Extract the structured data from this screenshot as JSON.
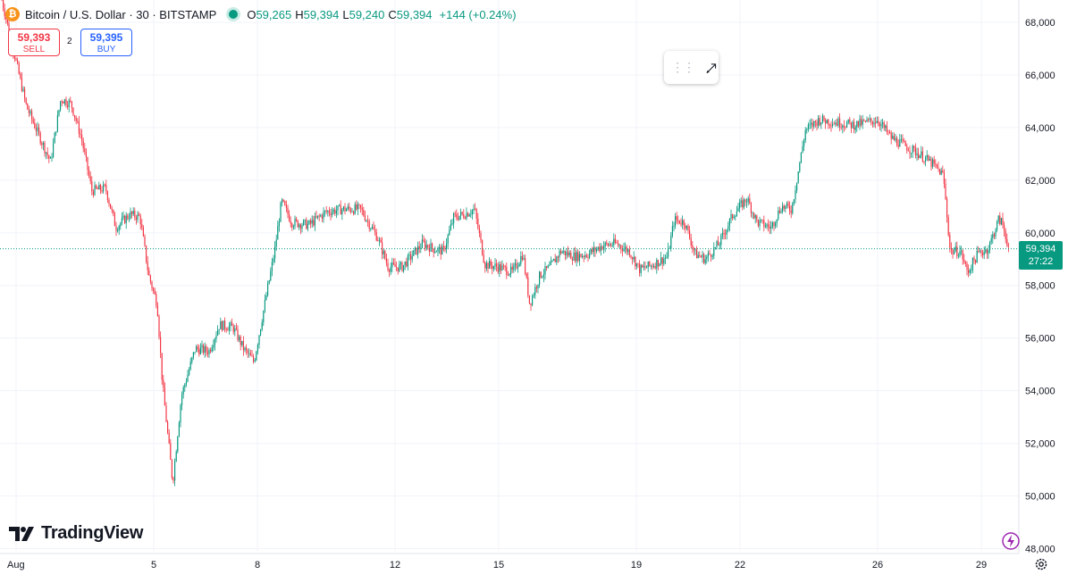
{
  "header": {
    "symbol_title": "Bitcoin / U.S. Dollar · 30 · BITSTAMP",
    "ohlc": {
      "o_label": "O",
      "o_value": "59,265",
      "h_label": "H",
      "h_value": "59,394",
      "l_label": "L",
      "l_value": "59,240",
      "c_label": "C",
      "c_value": "59,394",
      "change": "+144 (+0.24%)"
    }
  },
  "trade": {
    "sell_price": "59,393",
    "sell_label": "SELL",
    "spread": "2",
    "buy_price": "59,395",
    "buy_label": "BUY"
  },
  "price_tag": {
    "price": "59,394",
    "countdown": "27:22"
  },
  "branding": {
    "logo_text": "TradingView"
  },
  "icons": {
    "drawing_handle": "drag-handle-icon",
    "drawing_tool": "arrow-tool-icon",
    "assistant": "bolt-icon",
    "settings": "gear-icon"
  },
  "colors": {
    "up": "#089981",
    "down": "#f23645",
    "grid": "#f0f3fa"
  },
  "chart_data": {
    "type": "candlestick",
    "interval": "30",
    "y_ticks": [
      "48,000",
      "50,000",
      "52,000",
      "54,000",
      "56,000",
      "58,000",
      "60,000",
      "62,000",
      "64,000",
      "66,000",
      "68,000"
    ],
    "x_ticks": [
      "Aug",
      "5",
      "8",
      "12",
      "15",
      "19",
      "22",
      "26",
      "29"
    ],
    "ylim": [
      47800,
      68300
    ],
    "last_price": 59394,
    "price_path": [
      {
        "day": 1.0,
        "price": 66500
      },
      {
        "day": 1.3,
        "price": 64800
      },
      {
        "day": 1.7,
        "price": 63600
      },
      {
        "day": 2.0,
        "price": 62700
      },
      {
        "day": 2.3,
        "price": 65100
      },
      {
        "day": 2.6,
        "price": 64900
      },
      {
        "day": 2.9,
        "price": 63600
      },
      {
        "day": 3.2,
        "price": 61600
      },
      {
        "day": 3.6,
        "price": 61700
      },
      {
        "day": 3.9,
        "price": 60200
      },
      {
        "day": 4.3,
        "price": 60700
      },
      {
        "day": 4.6,
        "price": 60600
      },
      {
        "day": 4.85,
        "price": 58400
      },
      {
        "day": 5.1,
        "price": 57300
      },
      {
        "day": 5.25,
        "price": 54300
      },
      {
        "day": 5.4,
        "price": 52400
      },
      {
        "day": 5.55,
        "price": 50500
      },
      {
        "day": 5.8,
        "price": 53800
      },
      {
        "day": 6.2,
        "price": 55600
      },
      {
        "day": 6.6,
        "price": 55500
      },
      {
        "day": 6.9,
        "price": 56500
      },
      {
        "day": 7.3,
        "price": 56400
      },
      {
        "day": 7.6,
        "price": 55600
      },
      {
        "day": 7.9,
        "price": 55100
      },
      {
        "day": 8.2,
        "price": 57200
      },
      {
        "day": 8.5,
        "price": 59300
      },
      {
        "day": 8.7,
        "price": 61200
      },
      {
        "day": 9.0,
        "price": 60400
      },
      {
        "day": 9.5,
        "price": 60300
      },
      {
        "day": 10.0,
        "price": 60800
      },
      {
        "day": 10.5,
        "price": 60900
      },
      {
        "day": 11.0,
        "price": 60900
      },
      {
        "day": 11.5,
        "price": 59800
      },
      {
        "day": 11.8,
        "price": 58700
      },
      {
        "day": 12.2,
        "price": 58700
      },
      {
        "day": 12.6,
        "price": 59300
      },
      {
        "day": 12.8,
        "price": 59600
      },
      {
        "day": 13.1,
        "price": 59400
      },
      {
        "day": 13.4,
        "price": 59300
      },
      {
        "day": 13.7,
        "price": 60600
      },
      {
        "day": 14.0,
        "price": 60700
      },
      {
        "day": 14.3,
        "price": 60900
      },
      {
        "day": 14.6,
        "price": 58800
      },
      {
        "day": 15.0,
        "price": 58700
      },
      {
        "day": 15.4,
        "price": 58500
      },
      {
        "day": 15.7,
        "price": 59200
      },
      {
        "day": 15.9,
        "price": 57300
      },
      {
        "day": 16.2,
        "price": 58400
      },
      {
        "day": 16.5,
        "price": 58700
      },
      {
        "day": 16.8,
        "price": 59300
      },
      {
        "day": 17.2,
        "price": 59100
      },
      {
        "day": 17.6,
        "price": 59200
      },
      {
        "day": 18.0,
        "price": 59500
      },
      {
        "day": 18.4,
        "price": 59600
      },
      {
        "day": 18.8,
        "price": 59300
      },
      {
        "day": 19.1,
        "price": 58600
      },
      {
        "day": 19.5,
        "price": 58800
      },
      {
        "day": 19.9,
        "price": 59100
      },
      {
        "day": 20.1,
        "price": 60500
      },
      {
        "day": 20.4,
        "price": 60400
      },
      {
        "day": 20.7,
        "price": 59200
      },
      {
        "day": 21.0,
        "price": 59000
      },
      {
        "day": 21.4,
        "price": 59600
      },
      {
        "day": 21.8,
        "price": 60700
      },
      {
        "day": 22.2,
        "price": 61300
      },
      {
        "day": 22.5,
        "price": 60400
      },
      {
        "day": 22.9,
        "price": 60200
      },
      {
        "day": 23.2,
        "price": 61000
      },
      {
        "day": 23.5,
        "price": 60900
      },
      {
        "day": 23.9,
        "price": 63900
      },
      {
        "day": 24.3,
        "price": 64300
      },
      {
        "day": 24.8,
        "price": 64200
      },
      {
        "day": 25.3,
        "price": 64100
      },
      {
        "day": 25.7,
        "price": 64200
      },
      {
        "day": 26.0,
        "price": 64300
      },
      {
        "day": 26.4,
        "price": 63600
      },
      {
        "day": 26.8,
        "price": 63300
      },
      {
        "day": 27.2,
        "price": 63000
      },
      {
        "day": 27.6,
        "price": 62600
      },
      {
        "day": 27.9,
        "price": 62200
      },
      {
        "day": 28.1,
        "price": 59300
      },
      {
        "day": 28.4,
        "price": 59300
      },
      {
        "day": 28.6,
        "price": 58500
      },
      {
        "day": 28.9,
        "price": 59200
      },
      {
        "day": 29.2,
        "price": 59400
      },
      {
        "day": 29.5,
        "price": 60500
      },
      {
        "day": 29.6,
        "price": 60400
      },
      {
        "day": 29.8,
        "price": 59400
      }
    ]
  }
}
